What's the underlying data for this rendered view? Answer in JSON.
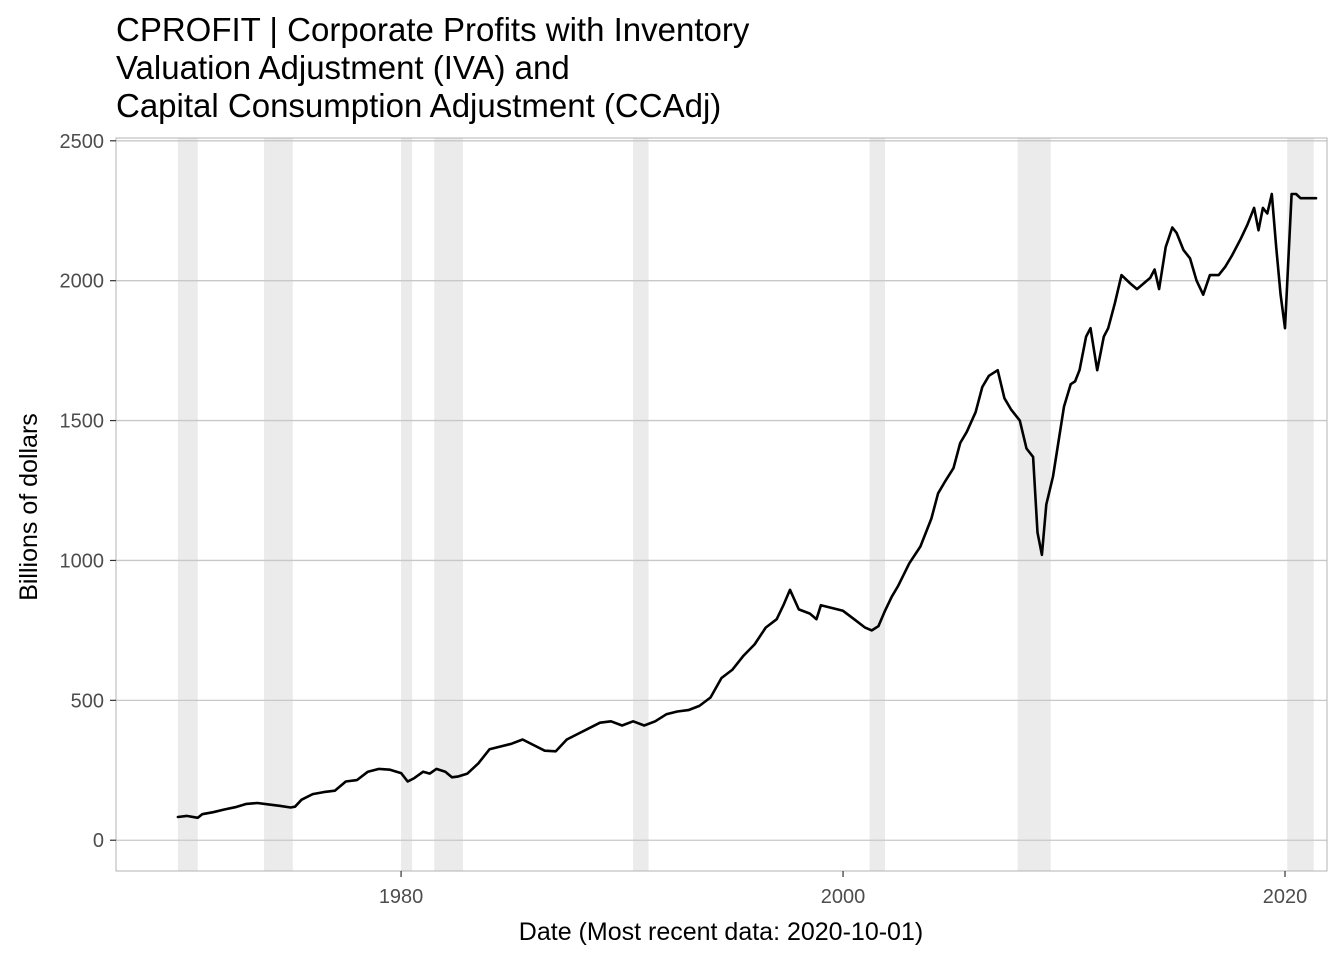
{
  "chart_data": {
    "type": "line",
    "title": [
      "CPROFIT | Corporate Profits with Inventory",
      "Valuation Adjustment (IVA) and",
      "Capital Consumption Adjustment (CCAdj)"
    ],
    "xlabel": "Date (Most recent data: 2020-10-01)",
    "ylabel": "Billions of dollars",
    "xlim": [
      1967.1,
      2021.9
    ],
    "ylim": [
      -110,
      2510
    ],
    "x_ticks": [
      1980,
      2000,
      2020
    ],
    "x_tick_labels": [
      "1980",
      "2000",
      "2020"
    ],
    "y_ticks": [
      0,
      500,
      1000,
      1500,
      2000,
      2500
    ],
    "y_tick_labels": [
      "0",
      "500",
      "1000",
      "1500",
      "2000",
      "2500"
    ],
    "grid": "horizontal major lines",
    "recession_shading_color": "#ebebeb",
    "line_color": "#000000",
    "recessions": [
      {
        "start": 1969.9,
        "end": 1970.8
      },
      {
        "start": 1973.8,
        "end": 1975.1
      },
      {
        "start": 1980.0,
        "end": 1980.5
      },
      {
        "start": 1981.5,
        "end": 1982.8
      },
      {
        "start": 1990.5,
        "end": 1991.2
      },
      {
        "start": 2001.2,
        "end": 2001.9
      },
      {
        "start": 2007.9,
        "end": 2009.4
      },
      {
        "start": 2020.1,
        "end": 2021.3
      }
    ],
    "series": [
      {
        "x": [
          1969.9,
          1970.3,
          1970.8,
          1971.0,
          1971.5,
          1972.0,
          1972.5,
          1973.0,
          1973.5,
          1974.0,
          1974.5,
          1975.0,
          1975.2,
          1975.5,
          1976.0,
          1976.5,
          1977.0,
          1977.5,
          1978.0,
          1978.5,
          1979.0,
          1979.5,
          1980.0,
          1980.3,
          1980.6,
          1981.0,
          1981.3,
          1981.6,
          1982.0,
          1982.3,
          1982.6,
          1983.0,
          1983.5,
          1984.0,
          1984.5,
          1985.0,
          1985.5,
          1986.0,
          1986.5,
          1987.0,
          1987.5,
          1988.0,
          1988.5,
          1989.0,
          1989.5,
          1990.0,
          1990.5,
          1991.0,
          1991.5,
          1992.0,
          1992.5,
          1993.0,
          1993.5,
          1994.0,
          1994.5,
          1995.0,
          1995.5,
          1996.0,
          1996.5,
          1997.0,
          1997.3,
          1997.6,
          1998.0,
          1998.5,
          1998.8,
          1999.0,
          1999.5,
          2000.0,
          2000.5,
          2001.0,
          2001.3,
          2001.6,
          2001.9,
          2002.2,
          2002.5,
          2003.0,
          2003.5,
          2004.0,
          2004.3,
          2004.6,
          2005.0,
          2005.3,
          2005.6,
          2006.0,
          2006.3,
          2006.6,
          2007.0,
          2007.3,
          2007.6,
          2008.0,
          2008.3,
          2008.6,
          2008.8,
          2009.0,
          2009.2,
          2009.5,
          2010.0,
          2010.3,
          2010.5,
          2010.7,
          2011.0,
          2011.2,
          2011.5,
          2011.8,
          2012.0,
          2012.3,
          2012.6,
          2013.0,
          2013.3,
          2013.6,
          2013.9,
          2014.1,
          2014.3,
          2014.6,
          2014.9,
          2015.1,
          2015.4,
          2015.7,
          2016.0,
          2016.3,
          2016.6,
          2017.0,
          2017.3,
          2017.6,
          2018.0,
          2018.3,
          2018.6,
          2018.8,
          2019.0,
          2019.2,
          2019.4,
          2019.6,
          2019.8,
          2020.0,
          2020.3,
          2020.5,
          2020.7,
          2021.0,
          2021.4
        ],
        "y": [
          83,
          87,
          80,
          93,
          100,
          110,
          118,
          130,
          133,
          128,
          123,
          117,
          120,
          145,
          165,
          172,
          177,
          210,
          215,
          245,
          255,
          252,
          240,
          210,
          222,
          245,
          238,
          255,
          245,
          225,
          228,
          238,
          275,
          325,
          335,
          345,
          360,
          340,
          320,
          318,
          360,
          380,
          400,
          420,
          425,
          410,
          425,
          410,
          425,
          450,
          460,
          465,
          480,
          510,
          580,
          610,
          660,
          700,
          760,
          790,
          840,
          895,
          825,
          810,
          790,
          840,
          830,
          820,
          790,
          760,
          750,
          765,
          820,
          870,
          910,
          990,
          1050,
          1150,
          1240,
          1280,
          1330,
          1420,
          1460,
          1530,
          1620,
          1660,
          1680,
          1580,
          1540,
          1500,
          1400,
          1370,
          1100,
          1020,
          1200,
          1300,
          1550,
          1630,
          1640,
          1680,
          1800,
          1830,
          1680,
          1800,
          1830,
          1920,
          2020,
          1990,
          1970,
          1990,
          2010,
          2040,
          1970,
          2120,
          2190,
          2170,
          2110,
          2080,
          2000,
          1950,
          2020,
          2020,
          2050,
          2090,
          2150,
          2200,
          2260,
          2180,
          2260,
          2240,
          2310,
          2120,
          1950,
          1830,
          2310,
          2310,
          2295,
          2295,
          2295
        ]
      }
    ]
  }
}
